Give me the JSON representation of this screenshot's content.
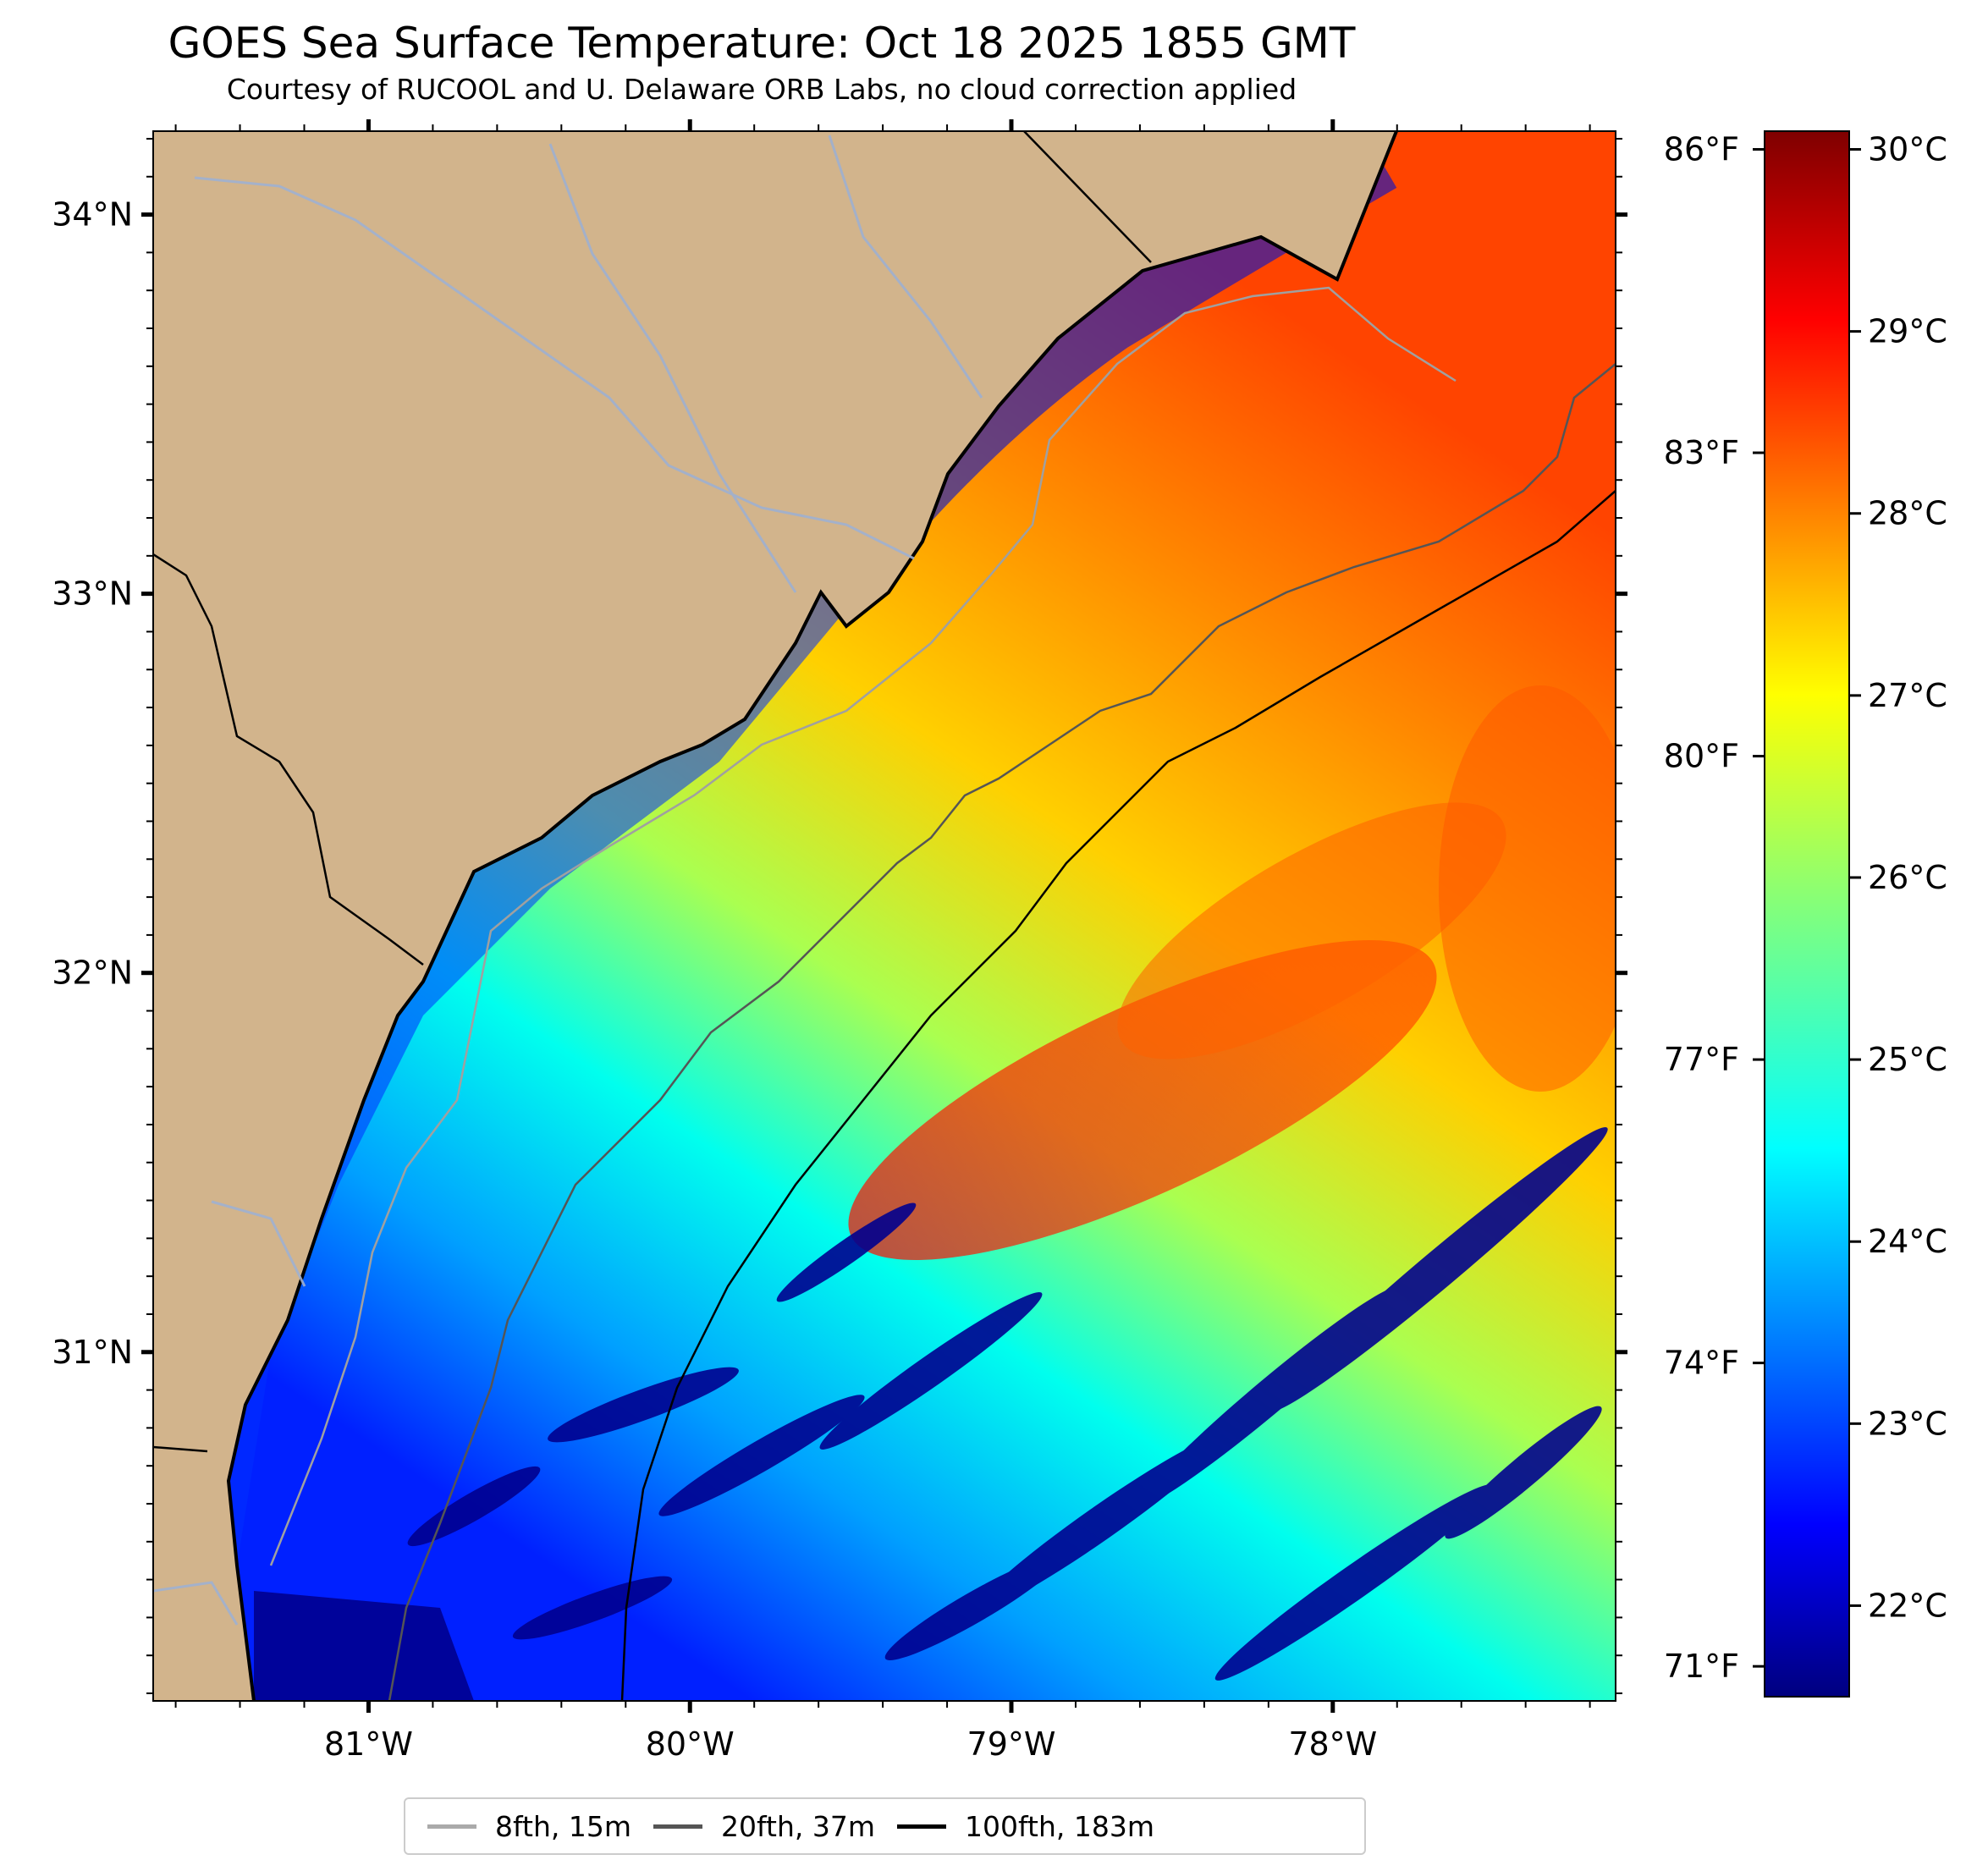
{
  "title": "GOES Sea Surface Temperature: Oct 18 2025 1855 GMT",
  "subtitle": "Courtesy of RUCOOL and U. Delaware ORB Labs, no cloud correction applied",
  "map": {
    "lat_ticks": [
      "34°N",
      "33°N",
      "32°N",
      "31°N"
    ],
    "lon_ticks": [
      "81°W",
      "80°W",
      "79°W",
      "78°W"
    ],
    "lat_values": [
      34,
      33,
      32,
      31
    ],
    "lon_values": [
      -81,
      -80,
      -79,
      -78
    ],
    "extent": {
      "lon_min": -81.67,
      "lon_max": -77.12,
      "lat_min": 30.08,
      "lat_max": 34.22
    },
    "land_color": "#d2b48c",
    "coast_color": "#000000"
  },
  "colorbar": {
    "celsius_ticks": [
      "30°C",
      "29°C",
      "28°C",
      "27°C",
      "26°C",
      "25°C",
      "24°C",
      "23°C",
      "22°C"
    ],
    "celsius_values": [
      30,
      29,
      28,
      27,
      26,
      25,
      24,
      23,
      22
    ],
    "fahrenheit_ticks": [
      "86°F",
      "83°F",
      "80°F",
      "77°F",
      "74°F",
      "71°F"
    ],
    "fahrenheit_values": [
      86,
      83,
      80,
      77,
      74,
      71
    ],
    "range_c": [
      21.5,
      30.1
    ],
    "colormap": "jet"
  },
  "legend": {
    "items": [
      {
        "label": "8fth, 15m",
        "color": "#aaaaaa"
      },
      {
        "label": "20fth, 37m",
        "color": "#555555"
      },
      {
        "label": "100fth, 183m",
        "color": "#000000"
      }
    ]
  }
}
